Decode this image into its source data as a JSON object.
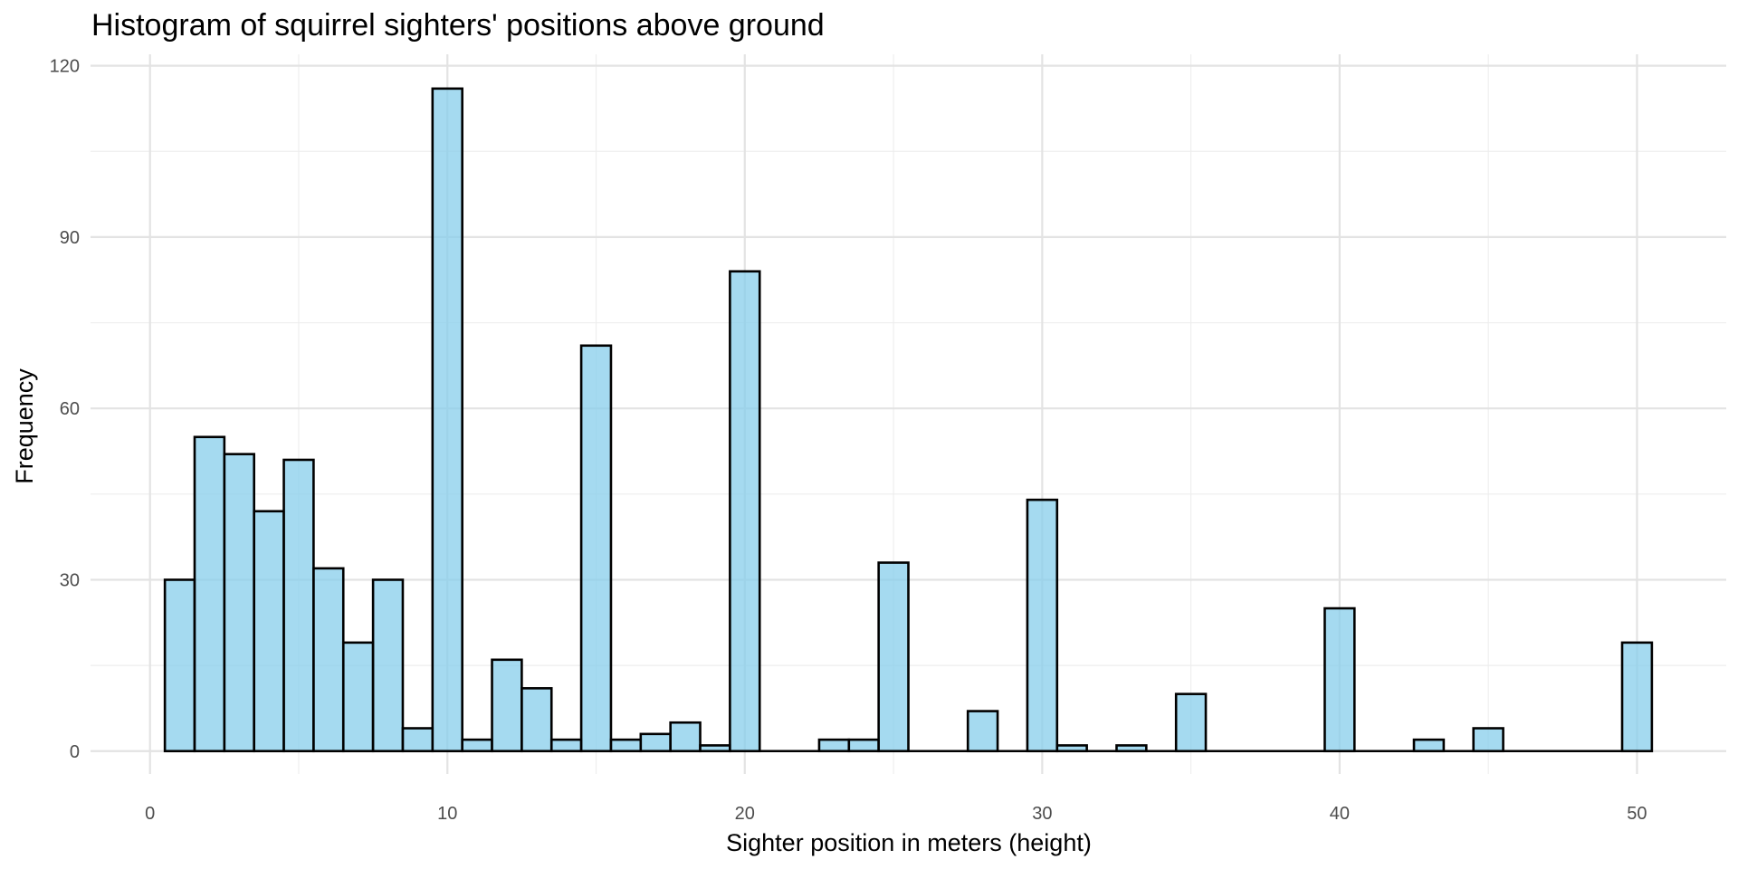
{
  "chart_data": {
    "type": "bar",
    "title": "Histogram of squirrel sighters' positions above ground",
    "xlabel": "Sighter position in meters (height)",
    "ylabel": "Frequency",
    "xlim": [
      -2,
      53
    ],
    "ylim": [
      -4,
      122
    ],
    "x_ticks": [
      0,
      10,
      20,
      30,
      40,
      50
    ],
    "x_minor_ticks": [
      5,
      15,
      25,
      35,
      45
    ],
    "y_ticks": [
      0,
      30,
      60,
      90,
      120
    ],
    "y_minor_ticks": [
      15,
      45,
      75,
      105
    ],
    "grid": true,
    "bin_width": 1,
    "bin_centers": [
      1,
      2,
      3,
      4,
      5,
      6,
      7,
      8,
      9,
      10,
      11,
      12,
      13,
      14,
      15,
      16,
      17,
      18,
      19,
      20,
      21,
      22,
      23,
      24,
      25,
      26,
      27,
      28,
      29,
      30,
      31,
      32,
      33,
      34,
      35,
      36,
      37,
      38,
      39,
      40,
      41,
      42,
      43,
      44,
      45,
      46,
      47,
      48,
      49,
      50
    ],
    "values": [
      30,
      55,
      52,
      42,
      51,
      32,
      19,
      30,
      4,
      116,
      2,
      16,
      11,
      2,
      71,
      2,
      3,
      5,
      1,
      84,
      0,
      0,
      2,
      2,
      33,
      0,
      0,
      7,
      0,
      44,
      1,
      0,
      1,
      0,
      10,
      0,
      0,
      0,
      0,
      25,
      0,
      0,
      2,
      0,
      4,
      0,
      0,
      0,
      0,
      19
    ],
    "fill_color": "#87CEEB",
    "edge_color": "#000000"
  }
}
